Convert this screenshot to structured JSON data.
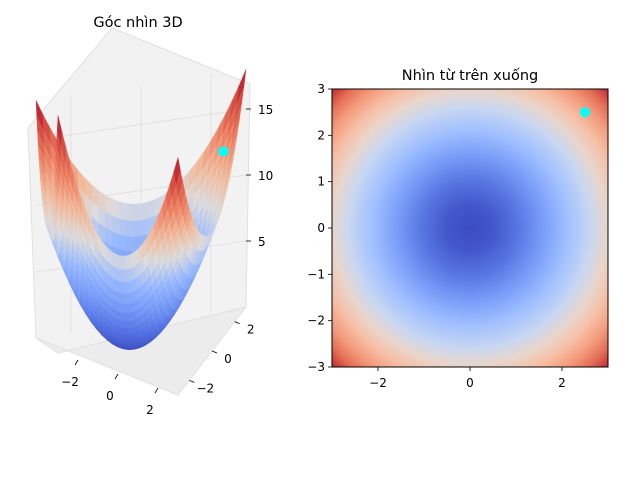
{
  "chart_data": [
    {
      "type": "surface3d",
      "title": "Góc nhìn 3D",
      "function": "z = x^2 + y^2",
      "xlim": [
        -3,
        3
      ],
      "ylim": [
        -3,
        3
      ],
      "zlim": [
        0,
        18
      ],
      "x_ticks": [
        -2,
        0,
        2
      ],
      "y_ticks": [
        -2,
        0,
        2
      ],
      "z_ticks": [
        5,
        10,
        15
      ],
      "colormap": "coolwarm",
      "grid": true,
      "marker": {
        "x": 2.5,
        "y": 2.5,
        "z": 12.5,
        "color": "#00ffff"
      }
    },
    {
      "type": "heatmap",
      "title": "Nhìn từ trên xuống",
      "function": "z = x^2 + y^2",
      "xlim": [
        -3,
        3
      ],
      "ylim": [
        -3,
        3
      ],
      "x_ticks": [
        -2,
        0,
        2
      ],
      "y_ticks": [
        -3,
        -2,
        -1,
        0,
        1,
        2,
        3
      ],
      "colormap": "coolwarm",
      "marker": {
        "x": 2.5,
        "y": 2.5,
        "color": "#00ffff"
      }
    }
  ]
}
